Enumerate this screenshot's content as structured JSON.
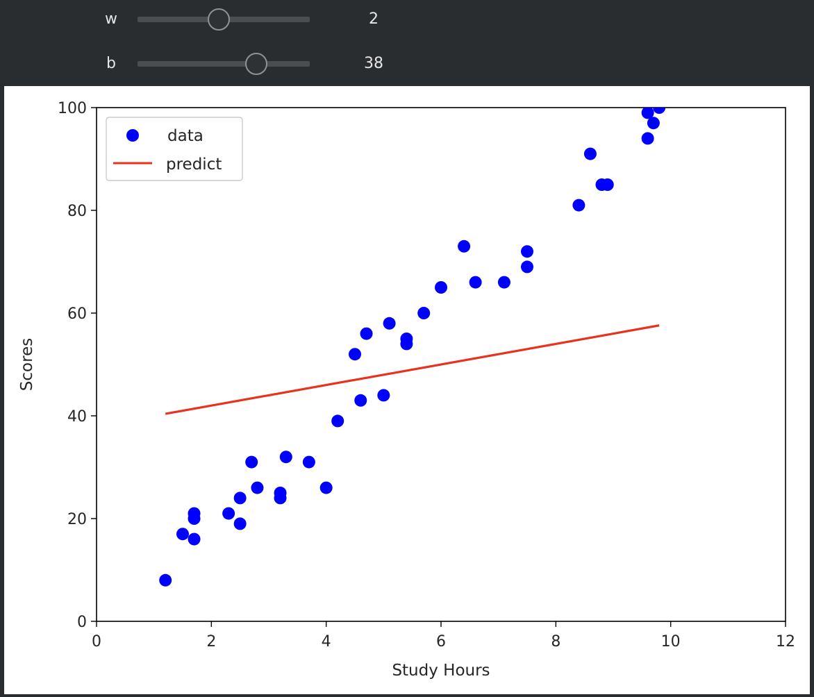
{
  "controls": {
    "w": {
      "label": "w",
      "value": "2",
      "min": 0,
      "max": 5,
      "position": 0.47
    },
    "b": {
      "label": "b",
      "value": "38",
      "min": 0,
      "max": 55,
      "position": 0.69
    }
  },
  "colors": {
    "data": "#0000ff",
    "predict": "#e8321e",
    "background": "#2a2d2f"
  },
  "chart_data": {
    "type": "scatter",
    "title": "",
    "xlabel": "Study Hours",
    "ylabel": "Scores",
    "xlim": [
      0,
      12
    ],
    "ylim": [
      0,
      100
    ],
    "xticks": [
      "0",
      "2",
      "4",
      "6",
      "8",
      "10",
      "12"
    ],
    "yticks": [
      "0",
      "20",
      "40",
      "60",
      "80",
      "100"
    ],
    "grid": false,
    "legend": {
      "placement": "top-left",
      "entries": [
        "data",
        "predict"
      ]
    },
    "series": [
      {
        "name": "data",
        "kind": "scatter",
        "points": [
          [
            1.2,
            8
          ],
          [
            1.5,
            17
          ],
          [
            1.7,
            16
          ],
          [
            1.7,
            20
          ],
          [
            1.7,
            21
          ],
          [
            2.3,
            21
          ],
          [
            2.5,
            19
          ],
          [
            2.5,
            24
          ],
          [
            2.7,
            31
          ],
          [
            2.8,
            26
          ],
          [
            3.2,
            25
          ],
          [
            3.2,
            24
          ],
          [
            3.3,
            32
          ],
          [
            3.7,
            31
          ],
          [
            4.0,
            26
          ],
          [
            4.2,
            39
          ],
          [
            4.5,
            52
          ],
          [
            4.6,
            43
          ],
          [
            4.7,
            56
          ],
          [
            5.0,
            44
          ],
          [
            5.1,
            58
          ],
          [
            5.4,
            55
          ],
          [
            5.4,
            54
          ],
          [
            5.7,
            60
          ],
          [
            6.0,
            65
          ],
          [
            6.4,
            73
          ],
          [
            6.6,
            66
          ],
          [
            7.1,
            66
          ],
          [
            7.5,
            69
          ],
          [
            7.5,
            72
          ],
          [
            8.4,
            81
          ],
          [
            8.6,
            91
          ],
          [
            8.8,
            85
          ],
          [
            8.9,
            85
          ],
          [
            9.6,
            94
          ],
          [
            9.6,
            99
          ],
          [
            9.7,
            97
          ],
          [
            9.8,
            100
          ]
        ]
      },
      {
        "name": "predict",
        "kind": "line",
        "points": [
          [
            1.2,
            40.4
          ],
          [
            9.8,
            57.6
          ]
        ]
      }
    ]
  }
}
